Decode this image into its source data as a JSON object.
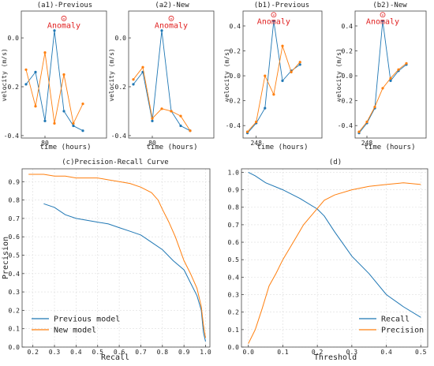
{
  "chart_data": [
    {
      "id": "a1",
      "type": "line",
      "title": "(a1)-Previous",
      "xlabel": "time (hours)",
      "ylabel": "velocity (m/s)",
      "x_tick_labels": [
        {
          "x": 80,
          "label": "80"
        }
      ],
      "y_tick_labels": [
        {
          "y": 0.0,
          "label": "0.0"
        },
        {
          "y": -0.2,
          "label": "-0.2"
        },
        {
          "y": -0.4,
          "label": "-0.4"
        }
      ],
      "xlim": [
        77.5,
        86.5
      ],
      "ylim": [
        -0.41,
        0.11
      ],
      "annotation": {
        "text": "Anomaly",
        "x": 82.0,
        "y": 0.08
      },
      "series": [
        {
          "color": "#1f77b4",
          "points": [
            [
              78,
              -0.19
            ],
            [
              79,
              -0.14
            ],
            [
              80,
              -0.34
            ],
            [
              81,
              0.03
            ],
            [
              82,
              -0.3
            ],
            [
              83,
              -0.36
            ],
            [
              84,
              -0.38
            ]
          ]
        },
        {
          "color": "#ff7f0e",
          "points": [
            [
              78,
              -0.13
            ],
            [
              79,
              -0.28
            ],
            [
              80,
              -0.06
            ],
            [
              81,
              -0.35
            ],
            [
              82,
              -0.15
            ],
            [
              83,
              -0.35
            ],
            [
              84,
              -0.27
            ]
          ]
        }
      ]
    },
    {
      "id": "a2",
      "type": "line",
      "title": "(a2)-New",
      "xlabel": "time (hours)",
      "ylabel": "velocity (m/s)",
      "x_tick_labels": [
        {
          "x": 80,
          "label": "80"
        }
      ],
      "y_tick_labels": [
        {
          "y": 0.0,
          "label": "0.0"
        },
        {
          "y": -0.2,
          "label": "-0.2"
        },
        {
          "y": -0.4,
          "label": "-0.4"
        }
      ],
      "xlim": [
        77.5,
        86.5
      ],
      "ylim": [
        -0.41,
        0.11
      ],
      "annotation": {
        "text": "Anomaly",
        "x": 82.0,
        "y": 0.08
      },
      "series": [
        {
          "color": "#1f77b4",
          "points": [
            [
              78,
              -0.19
            ],
            [
              79,
              -0.14
            ],
            [
              80,
              -0.34
            ],
            [
              81,
              0.03
            ],
            [
              82,
              -0.3
            ],
            [
              83,
              -0.36
            ],
            [
              84,
              -0.38
            ]
          ]
        },
        {
          "color": "#ff7f0e",
          "points": [
            [
              78,
              -0.17
            ],
            [
              79,
              -0.12
            ],
            [
              80,
              -0.33
            ],
            [
              81,
              -0.29
            ],
            [
              82,
              -0.3
            ],
            [
              83,
              -0.32
            ],
            [
              84,
              -0.38
            ]
          ]
        }
      ]
    },
    {
      "id": "b1",
      "type": "line",
      "title": "(b1)-Previous",
      "xlabel": "time (hours)",
      "ylabel": "velocity (m/s)",
      "x_tick_labels": [
        {
          "x": 248,
          "label": "248"
        }
      ],
      "y_tick_labels": [
        {
          "y": 0.4,
          "label": "0.4"
        },
        {
          "y": 0.2,
          "label": "0.2"
        },
        {
          "y": 0.0,
          "label": "0.0"
        },
        {
          "y": -0.2,
          "label": "-0.2"
        },
        {
          "y": -0.4,
          "label": "-0.4"
        }
      ],
      "xlim": [
        246.5,
        255.5
      ],
      "ylim": [
        -0.5,
        0.52
      ],
      "annotation": {
        "text": "Anomaly",
        "x": 250.0,
        "y": 0.49
      },
      "series": [
        {
          "color": "#1f77b4",
          "points": [
            [
              247,
              -0.46
            ],
            [
              248,
              -0.38
            ],
            [
              249,
              -0.26
            ],
            [
              250,
              0.44
            ],
            [
              251,
              -0.04
            ],
            [
              252,
              0.04
            ],
            [
              253,
              0.09
            ]
          ]
        },
        {
          "color": "#ff7f0e",
          "points": [
            [
              247,
              -0.45
            ],
            [
              248,
              -0.37
            ],
            [
              249,
              0.0
            ],
            [
              250,
              -0.15
            ],
            [
              251,
              0.24
            ],
            [
              252,
              0.03
            ],
            [
              253,
              0.11
            ]
          ]
        }
      ]
    },
    {
      "id": "b2",
      "type": "line",
      "title": "(b2)-New",
      "xlabel": "time (hours)",
      "ylabel": "velocity (m/s)",
      "x_tick_labels": [
        {
          "x": 248,
          "label": "248"
        }
      ],
      "y_tick_labels": [
        {
          "y": 0.4,
          "label": "0.4"
        },
        {
          "y": 0.2,
          "label": "0.2"
        },
        {
          "y": 0.0,
          "label": "0.0"
        },
        {
          "y": -0.2,
          "label": "-0.2"
        },
        {
          "y": -0.4,
          "label": "-0.4"
        }
      ],
      "xlim": [
        246.5,
        255.5
      ],
      "ylim": [
        -0.5,
        0.52
      ],
      "annotation": {
        "text": "Anomaly",
        "x": 250.0,
        "y": 0.49
      },
      "series": [
        {
          "color": "#1f77b4",
          "points": [
            [
              247,
              -0.46
            ],
            [
              248,
              -0.38
            ],
            [
              249,
              -0.26
            ],
            [
              250,
              0.44
            ],
            [
              251,
              -0.04
            ],
            [
              252,
              0.04
            ],
            [
              253,
              0.09
            ]
          ]
        },
        {
          "color": "#ff7f0e",
          "points": [
            [
              247,
              -0.45
            ],
            [
              248,
              -0.37
            ],
            [
              249,
              -0.25
            ],
            [
              250,
              -0.1
            ],
            [
              251,
              -0.02
            ],
            [
              252,
              0.05
            ],
            [
              253,
              0.1
            ]
          ]
        }
      ]
    },
    {
      "id": "c",
      "type": "line",
      "title": "(c)Precision-Recall Curve",
      "xlabel": "Recall",
      "ylabel": "Precision",
      "xlim": [
        0.15,
        1.02
      ],
      "ylim": [
        0.0,
        0.97
      ],
      "x_tick_labels": [
        {
          "x": 0.2,
          "label": "0.2"
        },
        {
          "x": 0.3,
          "label": "0.3"
        },
        {
          "x": 0.4,
          "label": "0.4"
        },
        {
          "x": 0.5,
          "label": "0.5"
        },
        {
          "x": 0.6,
          "label": "0.6"
        },
        {
          "x": 0.7,
          "label": "0.7"
        },
        {
          "x": 0.8,
          "label": "0.8"
        },
        {
          "x": 0.9,
          "label": "0.9"
        },
        {
          "x": 1.0,
          "label": "1.0"
        }
      ],
      "y_tick_labels": [
        {
          "y": 0.0,
          "label": "0.0"
        },
        {
          "y": 0.1,
          "label": "0.1"
        },
        {
          "y": 0.2,
          "label": "0.2"
        },
        {
          "y": 0.3,
          "label": "0.3"
        },
        {
          "y": 0.4,
          "label": "0.4"
        },
        {
          "y": 0.5,
          "label": "0.5"
        },
        {
          "y": 0.6,
          "label": "0.6"
        },
        {
          "y": 0.7,
          "label": "0.7"
        },
        {
          "y": 0.8,
          "label": "0.8"
        },
        {
          "y": 0.9,
          "label": "0.9"
        }
      ],
      "grid": true,
      "legend_position": "bottom-left",
      "series": [
        {
          "name": "Previous model",
          "color": "#1f77b4",
          "points": [
            [
              0.25,
              0.78
            ],
            [
              0.3,
              0.76
            ],
            [
              0.35,
              0.72
            ],
            [
              0.4,
              0.7
            ],
            [
              0.45,
              0.69
            ],
            [
              0.5,
              0.68
            ],
            [
              0.55,
              0.67
            ],
            [
              0.6,
              0.65
            ],
            [
              0.65,
              0.63
            ],
            [
              0.7,
              0.61
            ],
            [
              0.75,
              0.57
            ],
            [
              0.8,
              0.53
            ],
            [
              0.85,
              0.47
            ],
            [
              0.9,
              0.42
            ],
            [
              0.93,
              0.35
            ],
            [
              0.96,
              0.28
            ],
            [
              0.98,
              0.2
            ],
            [
              0.99,
              0.08
            ],
            [
              1.0,
              0.03
            ]
          ]
        },
        {
          "name": "New model",
          "color": "#ff7f0e",
          "points": [
            [
              0.18,
              0.94
            ],
            [
              0.25,
              0.94
            ],
            [
              0.3,
              0.93
            ],
            [
              0.35,
              0.93
            ],
            [
              0.4,
              0.92
            ],
            [
              0.5,
              0.92
            ],
            [
              0.55,
              0.91
            ],
            [
              0.6,
              0.9
            ],
            [
              0.65,
              0.89
            ],
            [
              0.7,
              0.87
            ],
            [
              0.75,
              0.84
            ],
            [
              0.78,
              0.8
            ],
            [
              0.8,
              0.75
            ],
            [
              0.83,
              0.68
            ],
            [
              0.86,
              0.6
            ],
            [
              0.9,
              0.47
            ],
            [
              0.93,
              0.4
            ],
            [
              0.96,
              0.32
            ],
            [
              0.98,
              0.22
            ],
            [
              0.99,
              0.12
            ],
            [
              1.0,
              0.05
            ]
          ]
        }
      ]
    },
    {
      "id": "d",
      "type": "line",
      "title": "(d)",
      "xlabel": "Threshold",
      "ylabel": "",
      "xlim": [
        -0.02,
        0.52
      ],
      "ylim": [
        0.0,
        1.02
      ],
      "x_tick_labels": [
        {
          "x": 0.0,
          "label": "0.0"
        },
        {
          "x": 0.1,
          "label": "0.1"
        },
        {
          "x": 0.2,
          "label": "0.2"
        },
        {
          "x": 0.3,
          "label": "0.3"
        },
        {
          "x": 0.4,
          "label": "0.4"
        },
        {
          "x": 0.5,
          "label": "0.5"
        }
      ],
      "y_tick_labels": [
        {
          "y": 0.0,
          "label": "0.0"
        },
        {
          "y": 0.1,
          "label": "0.1"
        },
        {
          "y": 0.2,
          "label": "0.2"
        },
        {
          "y": 0.3,
          "label": "0.3"
        },
        {
          "y": 0.4,
          "label": "0.4"
        },
        {
          "y": 0.5,
          "label": "0.5"
        },
        {
          "y": 0.6,
          "label": "0.6"
        },
        {
          "y": 0.7,
          "label": "0.7"
        },
        {
          "y": 0.8,
          "label": "0.8"
        },
        {
          "y": 0.9,
          "label": "0.9"
        },
        {
          "y": 1.0,
          "label": "1.0"
        }
      ],
      "grid": true,
      "legend_position": "bottom-right",
      "series": [
        {
          "name": "Recall",
          "color": "#1f77b4",
          "points": [
            [
              0.0,
              1.0
            ],
            [
              0.02,
              0.98
            ],
            [
              0.05,
              0.94
            ],
            [
              0.1,
              0.9
            ],
            [
              0.15,
              0.85
            ],
            [
              0.2,
              0.79
            ],
            [
              0.22,
              0.75
            ],
            [
              0.25,
              0.66
            ],
            [
              0.3,
              0.52
            ],
            [
              0.35,
              0.42
            ],
            [
              0.4,
              0.3
            ],
            [
              0.45,
              0.23
            ],
            [
              0.5,
              0.17
            ]
          ]
        },
        {
          "name": "Precision",
          "color": "#ff7f0e",
          "points": [
            [
              0.0,
              0.02
            ],
            [
              0.02,
              0.1
            ],
            [
              0.04,
              0.22
            ],
            [
              0.06,
              0.35
            ],
            [
              0.08,
              0.42
            ],
            [
              0.1,
              0.5
            ],
            [
              0.13,
              0.6
            ],
            [
              0.16,
              0.7
            ],
            [
              0.19,
              0.77
            ],
            [
              0.22,
              0.84
            ],
            [
              0.25,
              0.87
            ],
            [
              0.3,
              0.9
            ],
            [
              0.35,
              0.92
            ],
            [
              0.4,
              0.93
            ],
            [
              0.45,
              0.94
            ],
            [
              0.5,
              0.93
            ]
          ]
        }
      ]
    }
  ]
}
